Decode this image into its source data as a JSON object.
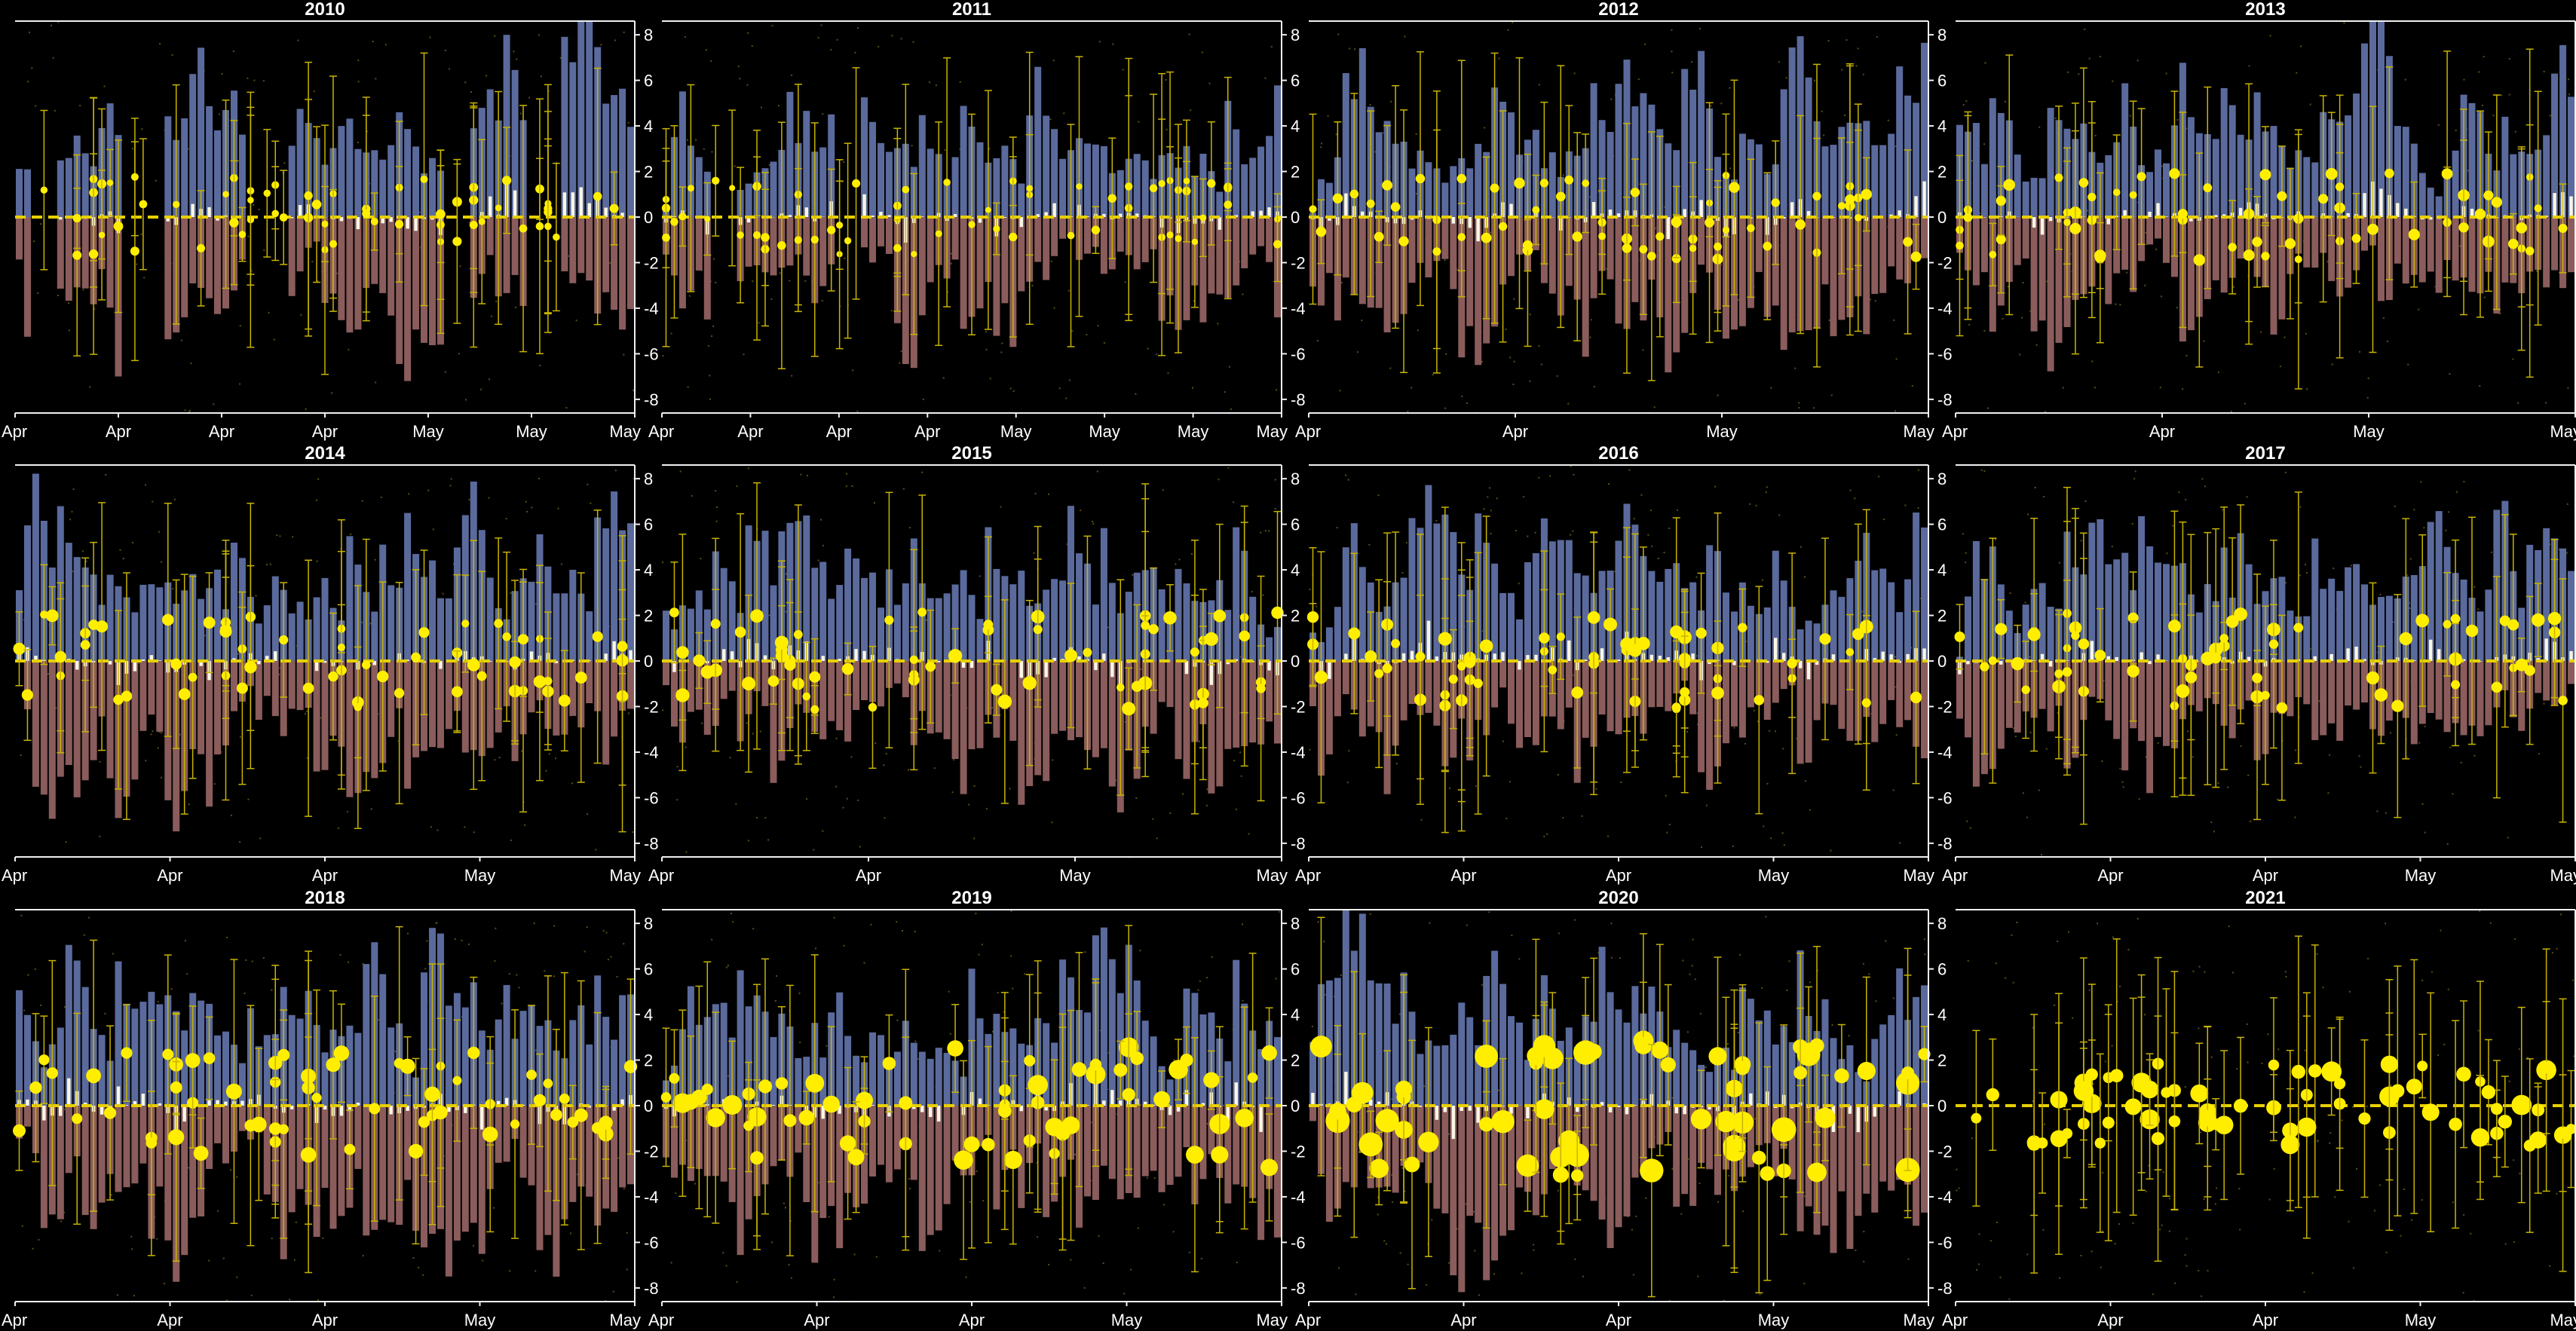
{
  "figure": {
    "background": "#000000",
    "colors": {
      "positive_bar": "#5b6a9c",
      "negative_bar": "#8a5c5c",
      "net_bar": "#f8f6e4",
      "marker": "#ffee00",
      "errorbar": "#c8b400",
      "zero_line": "#e8d000",
      "axis": "#f0f0f0",
      "text": "#ffffff"
    },
    "rows": 3,
    "cols": 4
  },
  "chart_data": [
    {
      "type": "bar",
      "title": "2010",
      "x_tick_labels": [
        "Apr",
        "Apr",
        "Apr",
        "Apr",
        "May",
        "May",
        "May"
      ],
      "y_ticks": [
        8,
        6,
        4,
        2,
        0,
        -2,
        -4,
        -6,
        -8
      ],
      "ylim": [
        -8.6,
        8.6
      ],
      "grid": false,
      "series": [],
      "seed": 11,
      "pos_level": 0.75,
      "neg_level": 0.7,
      "point_size": 0.25,
      "gaps": [
        [
          2,
          5
        ],
        [
          13,
          18
        ],
        [
          28,
          33
        ],
        [
          52,
          55
        ],
        [
          62,
          66
        ]
      ],
      "days": 75
    },
    {
      "type": "bar",
      "title": "2011",
      "x_tick_labels": [
        "Apr",
        "Apr",
        "Apr",
        "Apr",
        "May",
        "May",
        "May",
        "May"
      ],
      "y_ticks": [
        8,
        6,
        4,
        2,
        0,
        -2,
        -4,
        -6,
        -8
      ],
      "ylim": [
        -8.6,
        8.6
      ],
      "grid": false,
      "series": [],
      "seed": 23,
      "pos_level": 0.5,
      "neg_level": 0.45,
      "point_size": 0.2,
      "gaps": [
        [
          6,
          9
        ],
        [
          21,
          24
        ]
      ],
      "days": 75
    },
    {
      "type": "bar",
      "title": "2012",
      "x_tick_labels": [
        "Apr",
        "Apr",
        "May",
        "May"
      ],
      "y_ticks": [
        8,
        6,
        4,
        2,
        0,
        -2,
        -4,
        -6,
        -8
      ],
      "ylim": [
        -8.6,
        8.6
      ],
      "grid": false,
      "series": [],
      "seed": 37,
      "pos_level": 0.55,
      "neg_level": 0.55,
      "point_size": 0.3,
      "gaps": [],
      "days": 75
    },
    {
      "type": "bar",
      "title": "2013",
      "x_tick_labels": [
        "Apr",
        "Apr",
        "May",
        "May"
      ],
      "y_ticks": [
        8,
        6,
        4,
        2,
        0,
        -2,
        -4,
        -6,
        -8
      ],
      "ylim": [
        -8.6,
        8.6
      ],
      "grid": false,
      "series": [],
      "seed": 41,
      "pos_level": 0.55,
      "neg_level": 0.5,
      "point_size": 0.35,
      "gaps": [],
      "days": 75
    },
    {
      "type": "bar",
      "title": "2014",
      "x_tick_labels": [
        "Apr",
        "Apr",
        "Apr",
        "May",
        "May"
      ],
      "y_ticks": [
        8,
        6,
        4,
        2,
        0,
        -2,
        -4,
        -6,
        -8
      ],
      "ylim": [
        -8.6,
        8.6
      ],
      "grid": false,
      "series": [],
      "seed": 53,
      "pos_level": 0.6,
      "neg_level": 0.55,
      "point_size": 0.4,
      "gaps": [],
      "days": 75
    },
    {
      "type": "bar",
      "title": "2015",
      "x_tick_labels": [
        "Apr",
        "Apr",
        "May",
        "May"
      ],
      "y_ticks": [
        8,
        6,
        4,
        2,
        0,
        -2,
        -4,
        -6,
        -8
      ],
      "ylim": [
        -8.6,
        8.6
      ],
      "grid": false,
      "series": [],
      "seed": 67,
      "pos_level": 0.55,
      "neg_level": 0.55,
      "point_size": 0.45,
      "gaps": [],
      "days": 75
    },
    {
      "type": "bar",
      "title": "2016",
      "x_tick_labels": [
        "Apr",
        "Apr",
        "Apr",
        "May",
        "May"
      ],
      "y_ticks": [
        8,
        6,
        4,
        2,
        0,
        -2,
        -4,
        -6,
        -8
      ],
      "ylim": [
        -8.6,
        8.6
      ],
      "grid": false,
      "series": [],
      "seed": 71,
      "pos_level": 0.6,
      "neg_level": 0.55,
      "point_size": 0.45,
      "gaps": [],
      "days": 75
    },
    {
      "type": "bar",
      "title": "2017",
      "x_tick_labels": [
        "Apr",
        "Apr",
        "Apr",
        "May",
        "May"
      ],
      "y_ticks": [
        8,
        6,
        4,
        2,
        0,
        -2,
        -4,
        -6,
        -8
      ],
      "ylim": [
        -8.6,
        8.6
      ],
      "grid": false,
      "series": [],
      "seed": 83,
      "pos_level": 0.6,
      "neg_level": 0.5,
      "point_size": 0.45,
      "gaps": [],
      "days": 75
    },
    {
      "type": "bar",
      "title": "2018",
      "x_tick_labels": [
        "Apr",
        "Apr",
        "Apr",
        "May",
        "May"
      ],
      "y_ticks": [
        8,
        6,
        4,
        2,
        0,
        -2,
        -4,
        -6,
        -8
      ],
      "ylim": [
        -8.6,
        8.6
      ],
      "grid": false,
      "series": [],
      "seed": 97,
      "pos_level": 0.65,
      "neg_level": 0.6,
      "point_size": 0.55,
      "gaps": [],
      "days": 75
    },
    {
      "type": "bar",
      "title": "2019",
      "x_tick_labels": [
        "Apr",
        "Apr",
        "Apr",
        "May",
        "May"
      ],
      "y_ticks": [
        8,
        6,
        4,
        2,
        0,
        -2,
        -4,
        -6,
        -8
      ],
      "ylim": [
        -8.6,
        8.6
      ],
      "grid": false,
      "series": [],
      "seed": 101,
      "pos_level": 0.65,
      "neg_level": 0.6,
      "point_size": 0.75,
      "gaps": [],
      "days": 75
    },
    {
      "type": "bar",
      "title": "2020",
      "x_tick_labels": [
        "Apr",
        "Apr",
        "Apr",
        "May",
        "May"
      ],
      "y_ticks": [
        8,
        6,
        4,
        2,
        0,
        -2,
        -4,
        -6,
        -8
      ],
      "ylim": [
        -8.6,
        8.6
      ],
      "grid": false,
      "series": [],
      "seed": 113,
      "pos_level": 0.7,
      "neg_level": 0.65,
      "point_size": 0.95,
      "gaps": [],
      "days": 75
    },
    {
      "type": "scatter",
      "title": "2021",
      "x_tick_labels": [
        "Apr",
        "Apr",
        "Apr",
        "May",
        "May"
      ],
      "y_ticks": [
        8,
        6,
        4,
        2,
        0,
        -2,
        -4,
        -6,
        -8
      ],
      "ylim": [
        -8.6,
        8.6
      ],
      "grid": false,
      "series": [],
      "seed": 127,
      "pos_level": 0,
      "neg_level": 0,
      "point_size": 0.75,
      "gaps": [],
      "days": 75,
      "bars": false
    }
  ]
}
